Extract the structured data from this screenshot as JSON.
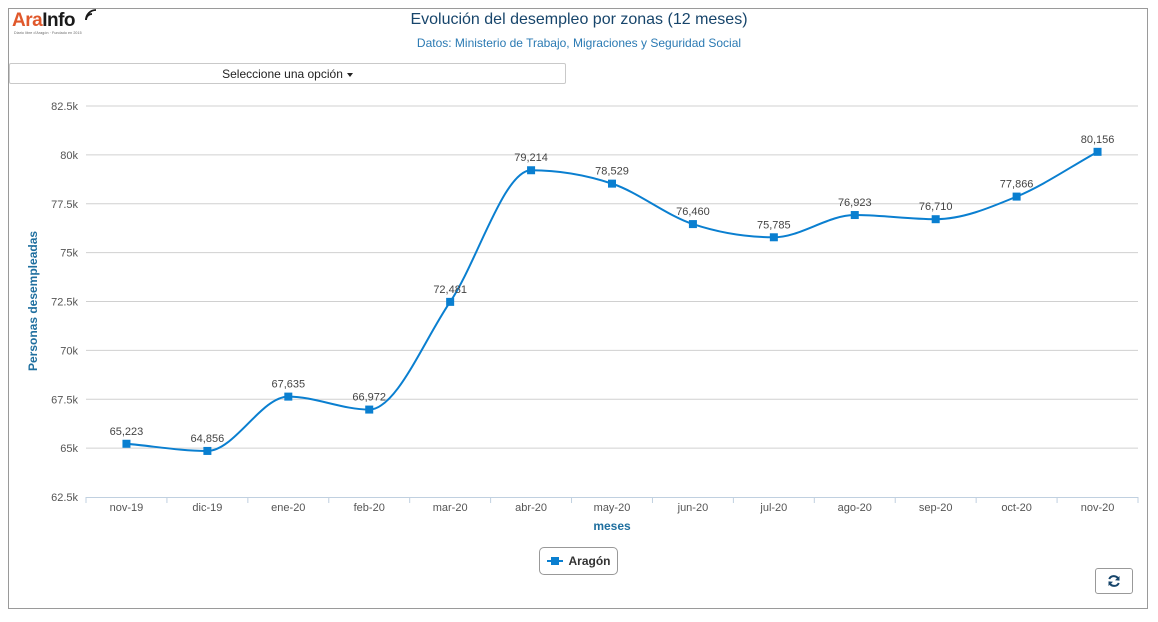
{
  "logo": {
    "ara": "Ara",
    "info": "Info",
    "tagline": "Diario libre d'Aragón · Fundado en 2015"
  },
  "title": "Evolución del desempleo por zonas (12 meses)",
  "subtitle": "Datos: Ministerio de Trabajo, Migraciones y Seguridad Social",
  "selector": {
    "label": "Seleccione una opción"
  },
  "refresh": {
    "icon": "refresh-icon"
  },
  "colors": {
    "series": "#0a7fd0",
    "title": "#17456b",
    "axis_title": "#1f6f9f"
  },
  "chart_data": {
    "type": "line",
    "title": "Evolución del desempleo por zonas (12 meses)",
    "subtitle": "Datos: Ministerio de Trabajo, Migraciones y Seguridad Social",
    "xlabel": "meses",
    "ylabel": "Personas desempleadas",
    "categories": [
      "nov-19",
      "dic-19",
      "ene-20",
      "feb-20",
      "mar-20",
      "abr-20",
      "may-20",
      "jun-20",
      "jul-20",
      "ago-20",
      "sep-20",
      "oct-20",
      "nov-20"
    ],
    "series": [
      {
        "name": "Aragón",
        "values": [
          65223,
          64856,
          67635,
          66972,
          72481,
          79214,
          78529,
          76460,
          75785,
          76923,
          76710,
          77866,
          80156
        ],
        "labels": [
          "65,223",
          "64,856",
          "67,635",
          "66,972",
          "72,481",
          "79,214",
          "78,529",
          "76,460",
          "75,785",
          "76,923",
          "76,710",
          "77,866",
          "80,156"
        ]
      }
    ],
    "ylim": [
      62500,
      82500
    ],
    "yticks": [
      62500,
      65000,
      67500,
      70000,
      72500,
      75000,
      77500,
      80000,
      82500
    ],
    "ytick_labels": [
      "62.5k",
      "65k",
      "67.5k",
      "70k",
      "72.5k",
      "75k",
      "77.5k",
      "80k",
      "82.5k"
    ],
    "grid": true,
    "legend": "bottom-center",
    "smooth": true,
    "marker": "square"
  }
}
